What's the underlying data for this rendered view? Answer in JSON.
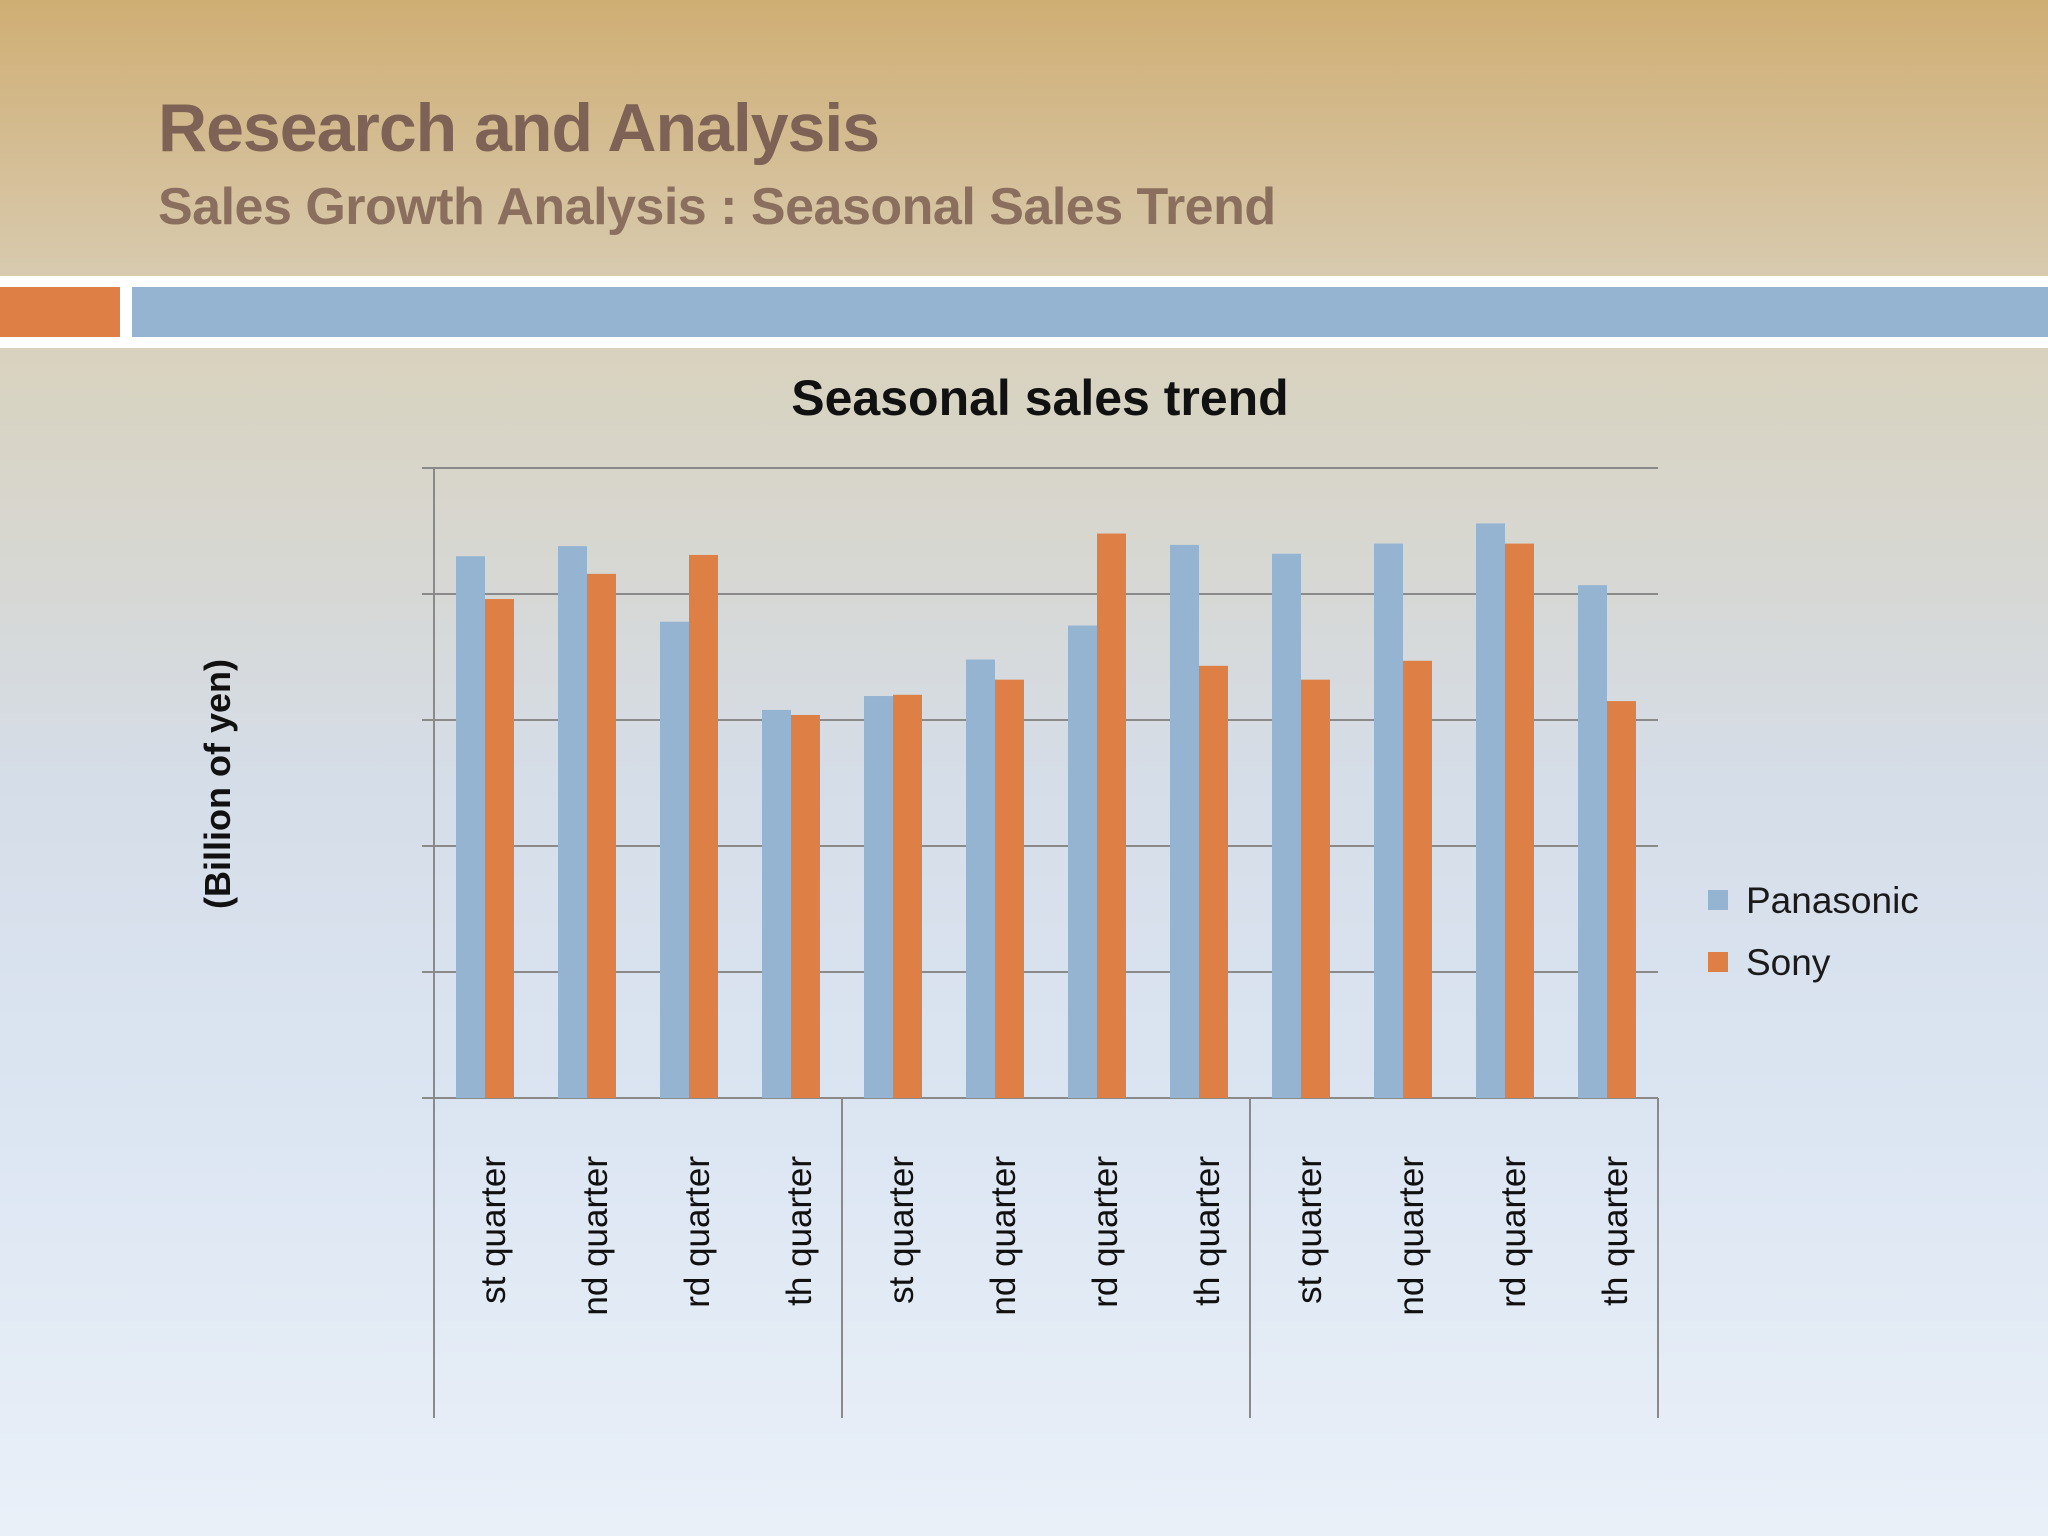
{
  "slide": {
    "title": "Research and Analysis",
    "subtitle": "Sales Growth Analysis : Seasonal Sales Trend"
  },
  "colors": {
    "accent_orange": "#de7f45",
    "accent_blue": "#94b4d2",
    "title_brown": "#7d6255"
  },
  "chart_data": {
    "type": "bar",
    "title": "Seasonal sales trend",
    "xlabel": "",
    "ylabel": "(Billion of yen)",
    "categories": [
      "st quarter",
      "nd quarter",
      "rd quarter",
      "th quarter",
      "st quarter",
      "nd quarter",
      "rd quarter",
      "th quarter",
      "st quarter",
      "nd quarter",
      "rd quarter",
      "th quarter"
    ],
    "category_groups": [
      {
        "label": "",
        "size": 4
      },
      {
        "label": "",
        "size": 4
      },
      {
        "label": "",
        "size": 4
      }
    ],
    "series": [
      {
        "name": "Panasonic",
        "color": "#94b4d2",
        "values": [
          4.3,
          4.38,
          3.78,
          3.08,
          3.19,
          3.48,
          3.75,
          4.39,
          4.32,
          4.4,
          4.56,
          4.07
        ]
      },
      {
        "name": "Sony",
        "color": "#de7f45",
        "values": [
          3.96,
          4.16,
          4.31,
          3.04,
          3.2,
          3.32,
          4.48,
          3.43,
          3.32,
          3.47,
          4.4,
          3.15
        ]
      }
    ],
    "ylim": [
      0,
      5
    ],
    "y_gridlines": [
      0,
      1,
      2,
      3,
      4,
      5
    ],
    "y_tick_labels_shown": false,
    "grid": true,
    "legend": "right"
  }
}
